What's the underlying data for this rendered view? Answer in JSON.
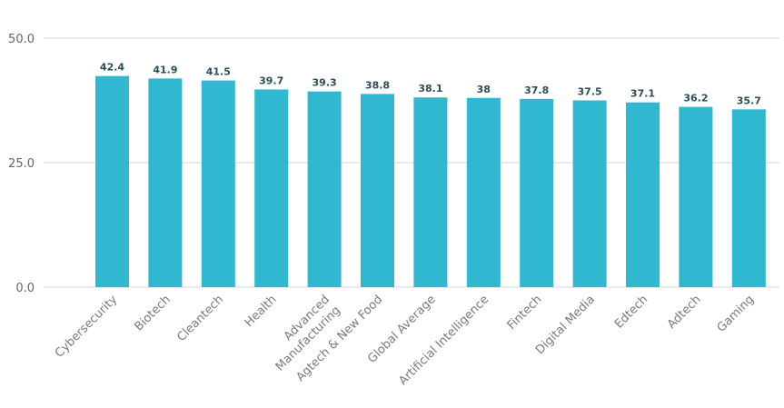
{
  "chart_data": {
    "type": "bar",
    "title": "",
    "xlabel": "",
    "ylabel": "",
    "ylim": [
      0,
      50
    ],
    "yticks": [
      "0.0",
      "25.0",
      "50.0"
    ],
    "grid": true,
    "bar_color": "#2fb8cf",
    "categories": [
      "Cybersecurity",
      "Biotech",
      "Cleantech",
      "Health",
      [
        "Advanced",
        "Manufacturing"
      ],
      "Agtech & New Food",
      "Global Average",
      "Artificial Intelligence",
      "Fintech",
      "Digital Media",
      "Edtech",
      "Adtech",
      "Gaming"
    ],
    "values": [
      42.4,
      41.9,
      41.5,
      39.7,
      39.3,
      38.8,
      38.1,
      38,
      37.8,
      37.5,
      37.1,
      36.2,
      35.7
    ],
    "value_labels": [
      "42.4",
      "41.9",
      "41.5",
      "39.7",
      "39.3",
      "38.8",
      "38.1",
      "38",
      "37.8",
      "37.5",
      "37.1",
      "36.2",
      "35.7"
    ]
  }
}
